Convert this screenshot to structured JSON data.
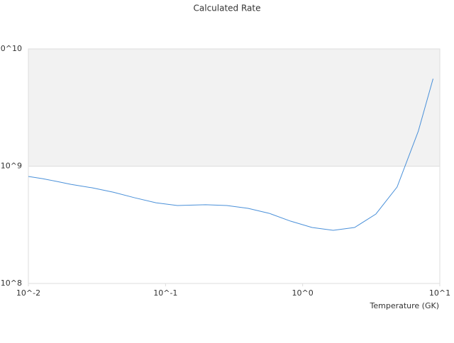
{
  "chart_data": {
    "type": "line",
    "title": "Calculated Rate",
    "x_label": "Temperature (GK)",
    "xscale": "log",
    "yscale": "log",
    "xlim": [
      0.01,
      10
    ],
    "ylim": [
      100000000,
      10000000000
    ],
    "xticks": [
      {
        "value": 0.01,
        "label": "10^-2"
      },
      {
        "value": 0.1,
        "label": "10^-1"
      },
      {
        "value": 1,
        "label": "10^0"
      },
      {
        "value": 10,
        "label": "10^1"
      }
    ],
    "yticks": [
      {
        "value": 100000000,
        "label": "10^8"
      },
      {
        "value": 1000000000,
        "label": "10^9"
      },
      {
        "value": 10000000000,
        "label": "10^10"
      }
    ],
    "band": {
      "from": 1000000000,
      "to": 10000000000,
      "color": "#f2f2f2"
    },
    "series": [
      {
        "color": "#4a90d9",
        "x": [
          0.01,
          0.0127,
          0.0161,
          0.0204,
          0.0292,
          0.0417,
          0.0596,
          0.0851,
          0.122,
          0.196,
          0.28,
          0.4,
          0.572,
          0.816,
          1.17,
          1.67,
          2.39,
          3.42,
          4.88,
          6.97,
          8.93
        ],
        "values": [
          817000000,
          783000000,
          741000000,
          700000000,
          654000000,
          600000000,
          538000000,
          488000000,
          462000000,
          469000000,
          462000000,
          437000000,
          396000000,
          340000000,
          300000000,
          284000000,
          300000000,
          391000000,
          664000000,
          1990000000,
          5570000000
        ]
      }
    ]
  }
}
